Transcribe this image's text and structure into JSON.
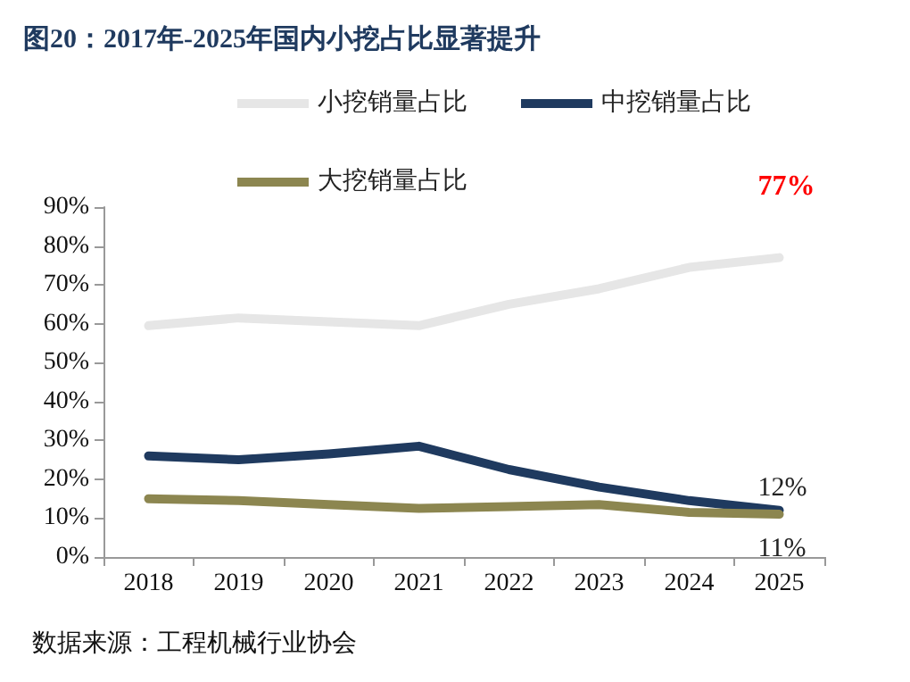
{
  "chart_data": {
    "type": "line",
    "title": "图20：2017年-2025年国内小挖占比显著提升",
    "categories": [
      "2018",
      "2019",
      "2020",
      "2021",
      "2022",
      "2023",
      "2024",
      "2025"
    ],
    "series": [
      {
        "name": "小挖销量占比",
        "color": "#e6e6e6",
        "values": [
          59.5,
          61.5,
          60.5,
          59.5,
          65,
          69,
          74.5,
          77
        ]
      },
      {
        "name": "中挖销量占比",
        "color": "#1f3a5f",
        "values": [
          26,
          25,
          26.5,
          28.5,
          22.5,
          18,
          14.5,
          12
        ]
      },
      {
        "name": "大挖销量占比",
        "color": "#8c8650",
        "values": [
          15,
          14.5,
          13.5,
          12.5,
          13,
          13.5,
          11.5,
          11
        ]
      }
    ],
    "ylim": [
      0,
      90
    ],
    "yticks": [
      {
        "value": 0,
        "label": "0%"
      },
      {
        "value": 10,
        "label": "10%"
      },
      {
        "value": 20,
        "label": "20%"
      },
      {
        "value": 30,
        "label": "30%"
      },
      {
        "value": 40,
        "label": "40%"
      },
      {
        "value": 50,
        "label": "50%"
      },
      {
        "value": 60,
        "label": "60%"
      },
      {
        "value": 70,
        "label": "70%"
      },
      {
        "value": 80,
        "label": "80%"
      },
      {
        "value": 90,
        "label": "90%"
      }
    ],
    "grid": false,
    "legend": "top",
    "marker": "none",
    "line_style": "solid",
    "annotations": [
      {
        "text": "77%",
        "x": "2025",
        "y": 77
      },
      {
        "text": "12%",
        "x": "2025",
        "y": 12
      },
      {
        "text": "11%",
        "x": "2025",
        "y": 11
      },
      "数据来源：工程机械行业协会"
    ]
  }
}
